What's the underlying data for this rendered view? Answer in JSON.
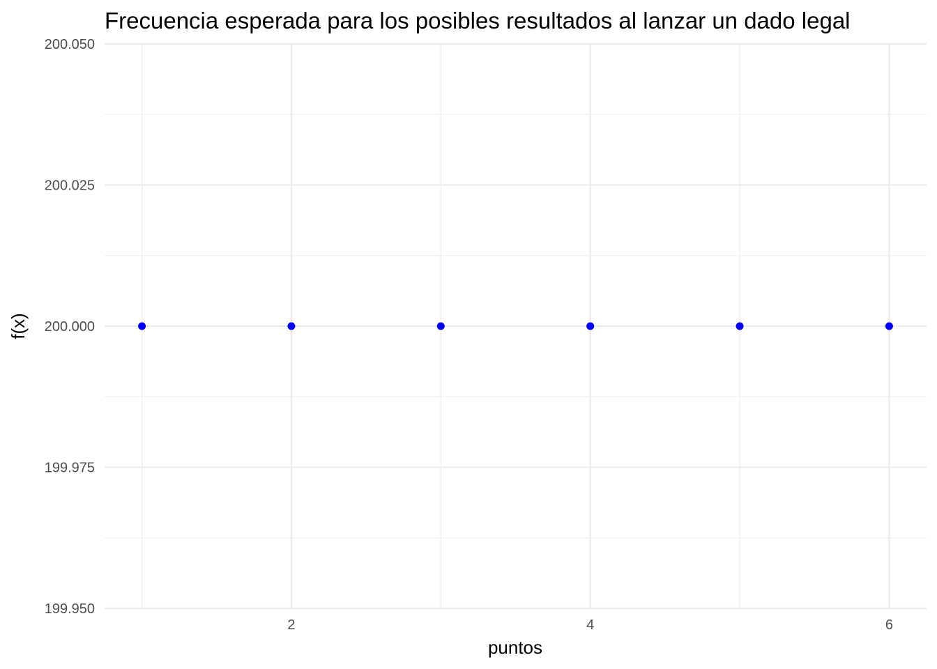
{
  "chart_data": {
    "type": "scatter",
    "title": "Frecuencia esperada para los posibles resultados al lanzar un dado legal",
    "xlabel": "puntos",
    "ylabel": "f(x)",
    "x": [
      1,
      2,
      3,
      4,
      5,
      6
    ],
    "y": [
      200,
      200,
      200,
      200,
      200,
      200
    ],
    "xlim": [
      0.75,
      6.25
    ],
    "ylim": [
      199.95,
      200.05
    ],
    "x_ticks": [
      2,
      4,
      6
    ],
    "x_tick_labels": [
      "2",
      "4",
      "6"
    ],
    "y_ticks": [
      199.95,
      199.975,
      200,
      200.025,
      200.05
    ],
    "y_tick_labels": [
      "199.950",
      "199.975",
      "200.000",
      "200.025",
      "200.050"
    ],
    "x_minor_ticks": [
      1,
      3,
      5
    ],
    "y_minor_ticks": [
      199.9625,
      199.9875,
      200.0125,
      200.0375
    ],
    "point_color": "#0000ff",
    "grid": true,
    "legend": "none"
  }
}
